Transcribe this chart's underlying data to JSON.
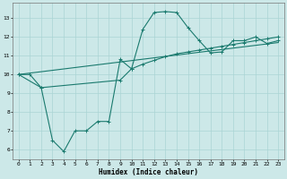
{
  "xlabel": "Humidex (Indice chaleur)",
  "xlim": [
    -0.5,
    23.5
  ],
  "ylim": [
    5.5,
    13.8
  ],
  "yticks": [
    6,
    7,
    8,
    9,
    10,
    11,
    12,
    13
  ],
  "xticks": [
    0,
    1,
    2,
    3,
    4,
    5,
    6,
    7,
    8,
    9,
    10,
    11,
    12,
    13,
    14,
    15,
    16,
    17,
    18,
    19,
    20,
    21,
    22,
    23
  ],
  "bg_color": "#cce8e8",
  "line_color": "#1a7a6e",
  "grid_color": "#aad4d4",
  "line1_x": [
    0,
    1,
    2,
    3,
    4,
    5,
    6,
    7,
    8,
    9,
    10,
    11,
    12,
    13,
    14,
    15,
    16,
    17,
    18,
    19,
    20,
    21,
    22,
    23
  ],
  "line1_y": [
    10.0,
    10.0,
    9.3,
    6.5,
    5.9,
    7.0,
    7.0,
    7.5,
    7.5,
    10.8,
    10.3,
    12.4,
    13.3,
    13.35,
    13.3,
    12.5,
    11.8,
    11.15,
    11.2,
    11.8,
    11.8,
    12.0,
    11.65,
    11.8
  ],
  "line2_x": [
    0,
    2,
    9,
    10,
    11,
    12,
    13,
    14,
    15,
    16,
    17,
    18,
    19,
    20,
    21,
    22,
    23
  ],
  "line2_y": [
    10.0,
    9.3,
    9.7,
    10.3,
    10.55,
    10.75,
    10.95,
    11.1,
    11.2,
    11.3,
    11.4,
    11.5,
    11.6,
    11.7,
    11.8,
    11.9,
    12.0
  ],
  "line3_x": [
    0,
    23
  ],
  "line3_y": [
    10.0,
    11.7
  ]
}
